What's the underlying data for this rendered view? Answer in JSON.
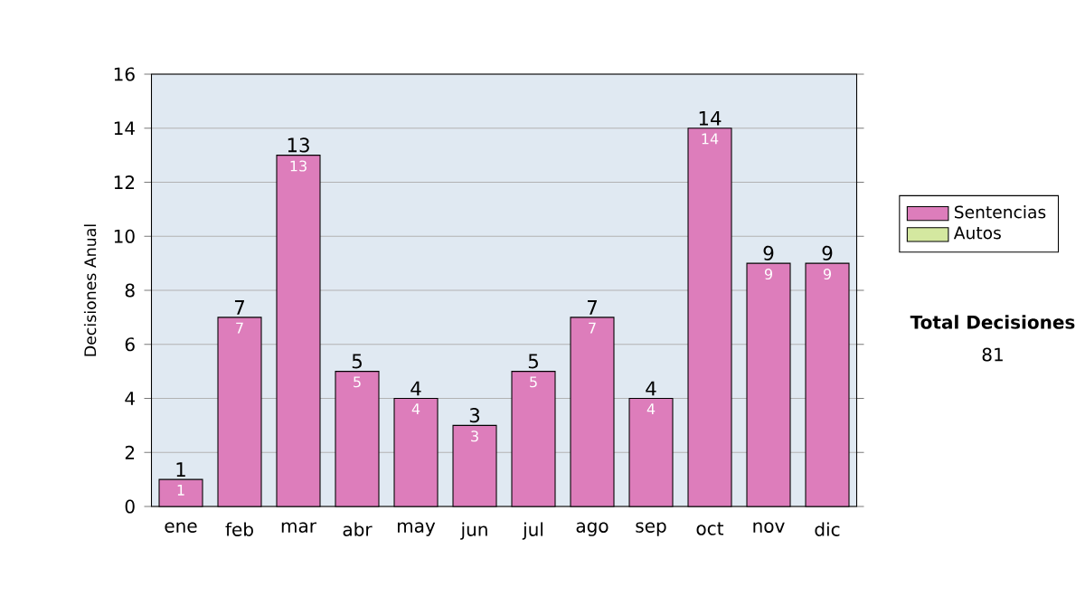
{
  "chart_data": {
    "type": "bar",
    "ylabel": "Decisiones Anual",
    "categories": [
      "ene",
      "feb",
      "mar",
      "abr",
      "may",
      "jun",
      "jul",
      "ago",
      "sep",
      "oct",
      "nov",
      "dic"
    ],
    "series": [
      {
        "name": "Sentencias",
        "color": "#dd7dbb",
        "values": [
          1,
          7,
          13,
          5,
          4,
          3,
          5,
          7,
          4,
          14,
          9,
          9
        ]
      },
      {
        "name": "Autos",
        "color": "#d4e8a0",
        "values": [
          null,
          null,
          null,
          null,
          null,
          null,
          null,
          null,
          null,
          null,
          null,
          null
        ]
      }
    ],
    "ylim": [
      0,
      16
    ],
    "yticks": [
      0,
      2,
      4,
      6,
      8,
      10,
      12,
      14,
      16
    ],
    "grid": "y",
    "legend": "right",
    "data_labels": true,
    "annotations": [
      "**Total Decisiones**",
      "81",
      {
        "text": "1",
        "x": "ene",
        "y": 1
      },
      {
        "text": "7",
        "x": "feb",
        "y": 7
      },
      {
        "text": "13",
        "x": "mar",
        "y": 13
      },
      {
        "text": "5",
        "x": "abr",
        "y": 5
      },
      {
        "text": "4",
        "x": "may",
        "y": 4
      },
      {
        "text": "3",
        "x": "jun",
        "y": 3
      },
      {
        "text": "5",
        "x": "jul",
        "y": 5
      },
      {
        "text": "7",
        "x": "ago",
        "y": 7
      },
      {
        "text": "4",
        "x": "sep",
        "y": 4
      },
      {
        "text": "14",
        "x": "oct",
        "y": 14
      },
      {
        "text": "9",
        "x": "nov",
        "y": 9
      },
      {
        "text": "9",
        "x": "dic",
        "y": 9
      }
    ]
  }
}
